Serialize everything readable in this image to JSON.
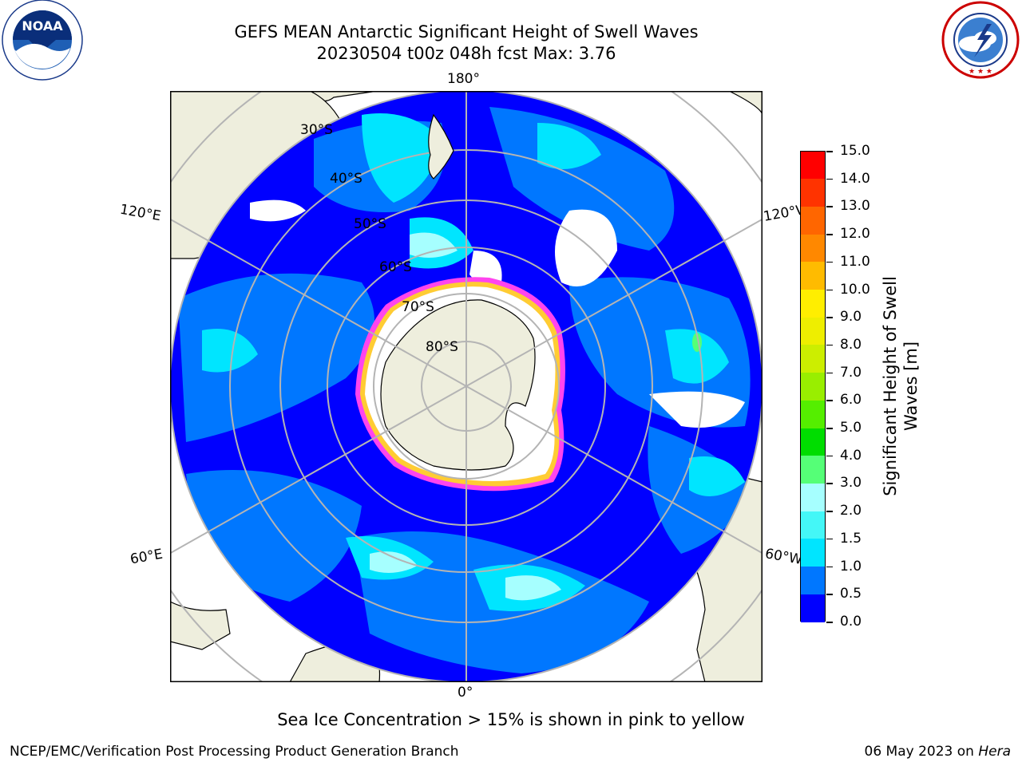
{
  "header": {
    "title_line1": "GEFS MEAN Antarctic Significant Height of Swell Waves",
    "title_line2": "20230504 t00z 048h fcst   Max: 3.76"
  },
  "logos": {
    "noaa": {
      "text": "NOAA",
      "ring_text": "NATIONAL OCEANIC AND ATMOSPHERIC ADMINISTRATION · U.S. DEPARTMENT OF COMMERCE ·",
      "icon": "noaa-logo"
    },
    "nws": {
      "ring_text": "NATIONAL WEATHER SERVICE",
      "icon": "nws-logo"
    }
  },
  "map": {
    "longitude_labels": {
      "top": "180°",
      "bottom": "0°",
      "upper_left": "120°E",
      "upper_right": "120°W",
      "lower_left": "60°E",
      "lower_right": "60°W"
    },
    "latitude_labels": [
      "30°S",
      "40°S",
      "50°S",
      "60°S",
      "70°S",
      "80°S"
    ],
    "colors": {
      "ocean_dark": "#0000ff",
      "land": "#eeeedd",
      "ice": "#ffffff",
      "ice_edge_pink": "#ff44ee",
      "ice_edge_yellow": "#ffcc33",
      "grid": "#b4b4b4"
    }
  },
  "colorbar": {
    "label_line1": "Significant Height of Swell",
    "label_line2": "Waves [m]",
    "ticks": [
      "0.0",
      "0.5",
      "1.0",
      "1.5",
      "2.0",
      "3.0",
      "4.0",
      "5.0",
      "6.0",
      "7.0",
      "8.0",
      "9.0",
      "10.0",
      "11.0",
      "12.0",
      "13.0",
      "14.0",
      "15.0"
    ],
    "colors": [
      "#0000ff",
      "#0077ff",
      "#00e5ff",
      "#44f7f7",
      "#a6ffff",
      "#55ff77",
      "#00dd00",
      "#55ee00",
      "#99ee00",
      "#ccee00",
      "#eeee00",
      "#ffee00",
      "#ffbb00",
      "#ff8800",
      "#ff6600",
      "#ff3300",
      "#ff0000"
    ]
  },
  "note": "Sea Ice Concentration > 15% is shown in pink to yellow",
  "footer": {
    "left": "NCEP/EMC/Verification Post Processing Product Generation Branch",
    "right_date": "06 May 2023 on",
    "right_host": "Hera"
  }
}
